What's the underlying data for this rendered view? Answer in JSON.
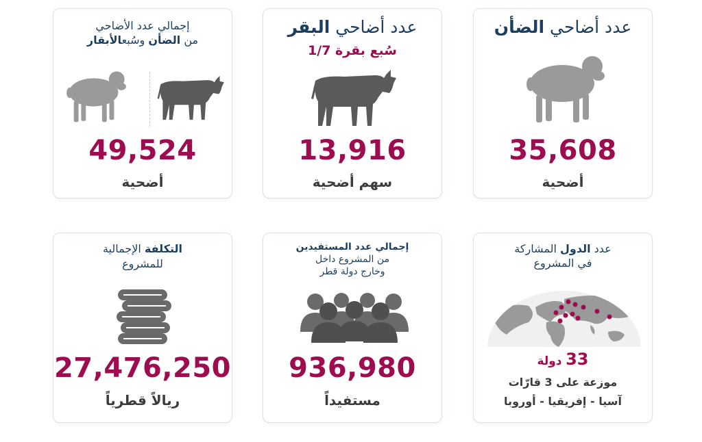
{
  "cards": {
    "sheep": {
      "title_pre": "عدد أضاحي",
      "title_bold": "الضأن",
      "number": "35,608",
      "unit": "أضحية",
      "icon": "sheep-icon"
    },
    "cattle": {
      "title_pre": "عدد أضاحي",
      "title_bold": "البقر",
      "subtitle": "سُبع بقرة 1/7",
      "number": "13,916",
      "unit": "سهم أضحية",
      "icon": "cow-icon"
    },
    "total": {
      "title_line1": "إجمالي عدد الأضاحي",
      "title_l2_pre": "من",
      "title_l2_bold1": "الضأن",
      "title_l2_mid": "وسُبع",
      "title_l2_bold2": "الأبقار",
      "number": "49,524",
      "unit": "أضحية"
    },
    "countries": {
      "title_pre": "عدد",
      "title_bold": "الدول",
      "title_post": "المشاركة",
      "title_line2": "في المشروع",
      "count_number": "33",
      "count_word": "دولة",
      "line1": "موزعة على 3 قارّات",
      "line2": "آسيا - إفريقيا - أوروبا",
      "icon": "world-map-icon"
    },
    "beneficiaries": {
      "title_line1": "إجمالي عدد المستفيدين",
      "title_line2": "من المشروع داخل",
      "title_line3": "وخارج دولة قطر",
      "number": "936,980",
      "unit": "مستفيداً",
      "icon": "people-group-icon"
    },
    "cost": {
      "title_bold": "التكلفة",
      "title_post": "الإجمالية",
      "title_line2": "للمشروع",
      "number": "27,476,250",
      "unit": "ريالاً قطرياً",
      "icon": "coin-stack-icon"
    }
  },
  "colors": {
    "accent": "#9c0c4e",
    "heading": "#1c3f5f",
    "text": "#3b3b3b",
    "icon_gray": "#9a9a9a",
    "icon_dark": "#5a5a5a",
    "border": "#eddcdc"
  }
}
